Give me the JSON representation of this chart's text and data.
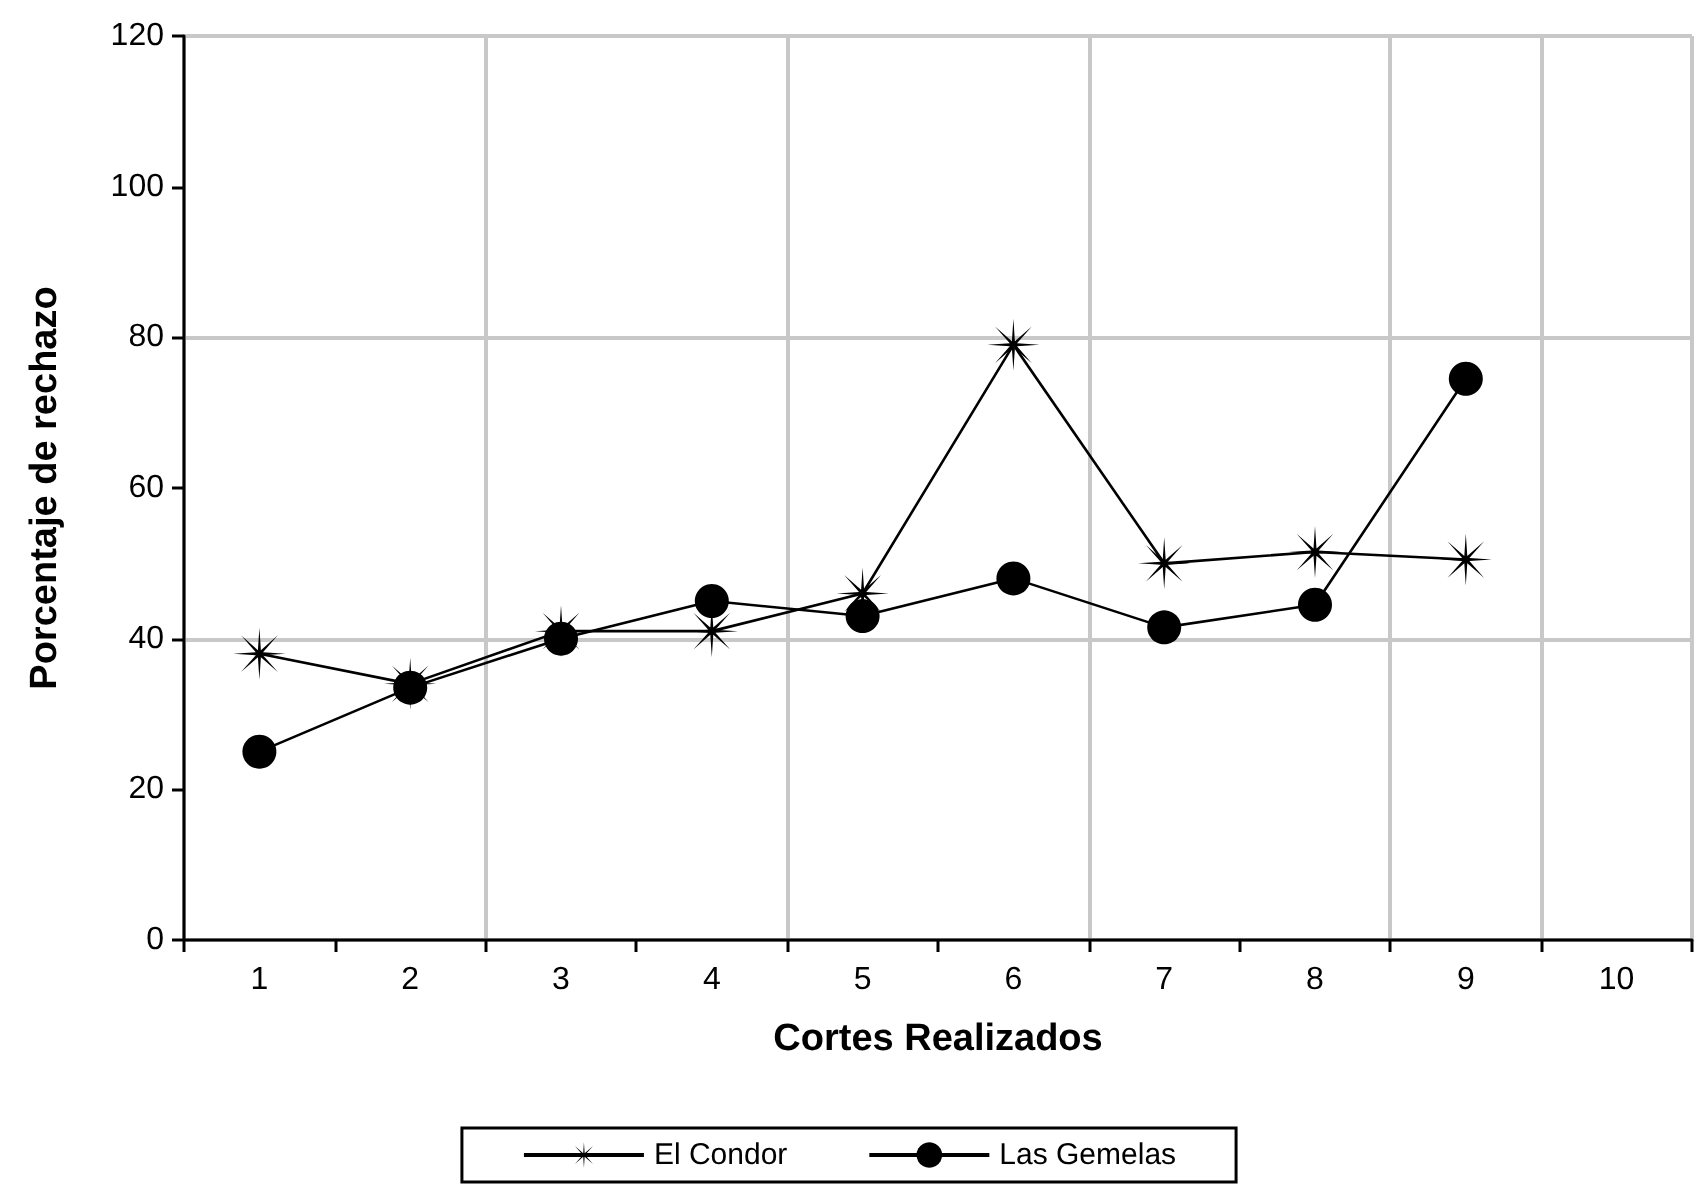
{
  "chart_data": {
    "type": "line",
    "xlabel": "Cortes Realizados",
    "ylabel": "Porcentaje de rechazo",
    "categories": [
      "1",
      "2",
      "3",
      "4",
      "5",
      "6",
      "7",
      "8",
      "9",
      "10"
    ],
    "series": [
      {
        "name": "El Condor",
        "color": "#000000",
        "marker": "star",
        "values": [
          38,
          34,
          41,
          41,
          46,
          79,
          50,
          51.5,
          50.5,
          null
        ]
      },
      {
        "name": "Las Gemelas",
        "color": "#000000",
        "marker": "circle",
        "values": [
          25,
          33.5,
          40,
          45,
          43,
          48,
          41.5,
          44.5,
          74.5,
          null
        ]
      }
    ],
    "ylim": [
      0,
      120
    ],
    "yticks": [
      0,
      20,
      40,
      60,
      80,
      100,
      120
    ],
    "grid": true,
    "legend": "bottom",
    "line_style": "solid"
  }
}
